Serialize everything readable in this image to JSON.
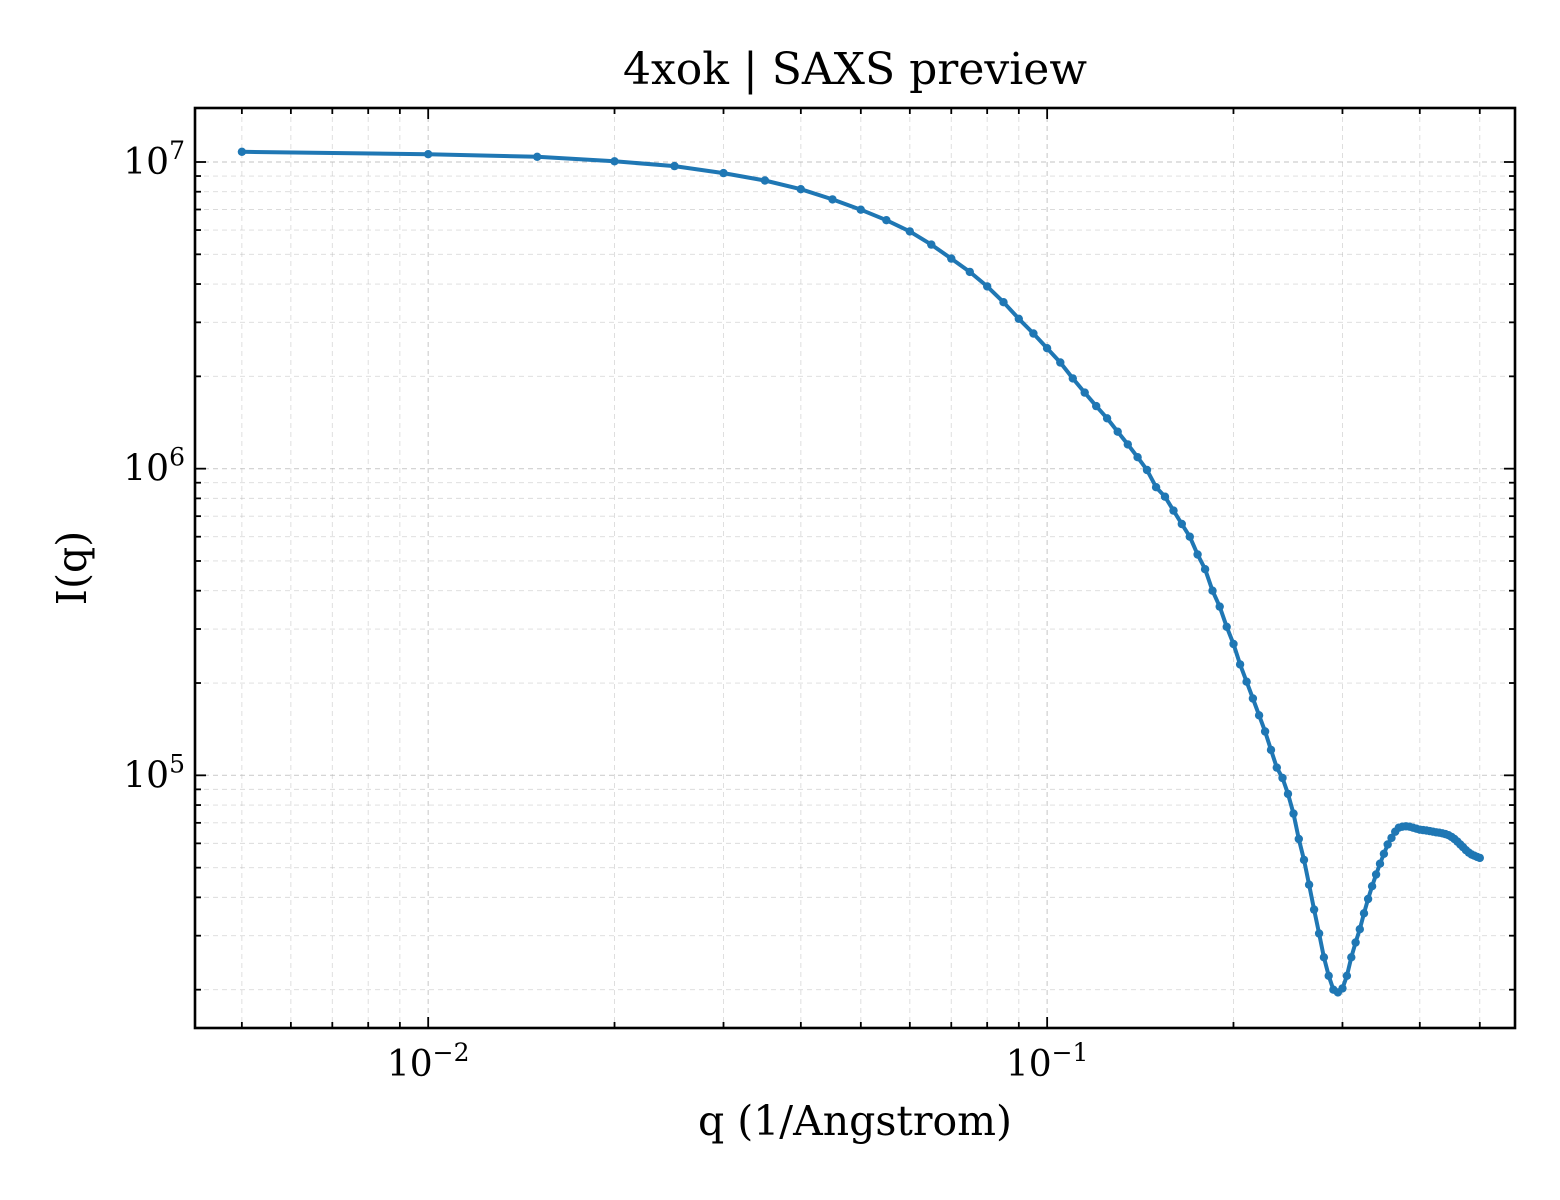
{
  "chart_data": {
    "type": "line",
    "title": "4xok | SAXS preview",
    "xlabel": "q (1/Angstrom)",
    "ylabel": "I(q)",
    "xscale": "log",
    "yscale": "log",
    "xlim": [
      0.0042,
      0.57
    ],
    "ylim": [
      15000,
      15000000
    ],
    "grid": true,
    "legend": "none",
    "line_color": "#1f77b4",
    "x_ticks": [
      {
        "base": "10",
        "exp": "−2",
        "value": 0.01
      },
      {
        "base": "10",
        "exp": "−1",
        "value": 0.1
      }
    ],
    "y_ticks": [
      {
        "base": "10",
        "exp": "5",
        "value": 100000
      },
      {
        "base": "10",
        "exp": "6",
        "value": 1000000
      },
      {
        "base": "10",
        "exp": "7",
        "value": 10000000
      }
    ],
    "series": [
      {
        "x": [
          0.005,
          0.01,
          0.015,
          0.02,
          0.025,
          0.03,
          0.035,
          0.04,
          0.045,
          0.05,
          0.055,
          0.06,
          0.065,
          0.07,
          0.075,
          0.08,
          0.085,
          0.09,
          0.095,
          0.1,
          0.105,
          0.11,
          0.115,
          0.12,
          0.125,
          0.13,
          0.135,
          0.14,
          0.145,
          0.15,
          0.155,
          0.16,
          0.165,
          0.17,
          0.175,
          0.18,
          0.185,
          0.19,
          0.195,
          0.2,
          0.205,
          0.21,
          0.215,
          0.22,
          0.225,
          0.23,
          0.235,
          0.24,
          0.245,
          0.25,
          0.255,
          0.26,
          0.265,
          0.27,
          0.275,
          0.28,
          0.285,
          0.29,
          0.295,
          0.3,
          0.305,
          0.31,
          0.315,
          0.32,
          0.325,
          0.33,
          0.335,
          0.34,
          0.345,
          0.35,
          0.355,
          0.36,
          0.365,
          0.37,
          0.375,
          0.38,
          0.385,
          0.39,
          0.395,
          0.4,
          0.405,
          0.41,
          0.415,
          0.42,
          0.425,
          0.43,
          0.435,
          0.44,
          0.445,
          0.45,
          0.455,
          0.46,
          0.465,
          0.47,
          0.475,
          0.48,
          0.485,
          0.49,
          0.495,
          0.5
        ],
        "y": [
          10800000,
          10600000,
          10400000,
          10050000,
          9700000,
          9200000,
          8700000,
          8150000,
          7550000,
          6990000,
          6460000,
          5940000,
          5380000,
          4840000,
          4380000,
          3930000,
          3490000,
          3080000,
          2760000,
          2470000,
          2220000,
          1970000,
          1770000,
          1600000,
          1460000,
          1320000,
          1200000,
          1090000,
          990000,
          870000,
          810000,
          730000,
          660000,
          600000,
          525000,
          470000,
          400000,
          355000,
          305000,
          268000,
          230000,
          202000,
          178000,
          157000,
          139000,
          121000,
          106000,
          98000,
          87000,
          75000,
          62000,
          53000,
          44000,
          36500,
          30500,
          25500,
          22200,
          20000,
          19600,
          20200,
          22200,
          25500,
          28500,
          31500,
          35500,
          39500,
          43500,
          47500,
          51500,
          55500,
          59500,
          62500,
          65500,
          67500,
          68000,
          68200,
          68000,
          67500,
          67000,
          66500,
          66300,
          66100,
          65800,
          65500,
          65200,
          65000,
          64700,
          64300,
          63800,
          63000,
          62000,
          60800,
          59500,
          58300,
          57000,
          56000,
          55200,
          54700,
          54200,
          53800
        ]
      }
    ]
  }
}
